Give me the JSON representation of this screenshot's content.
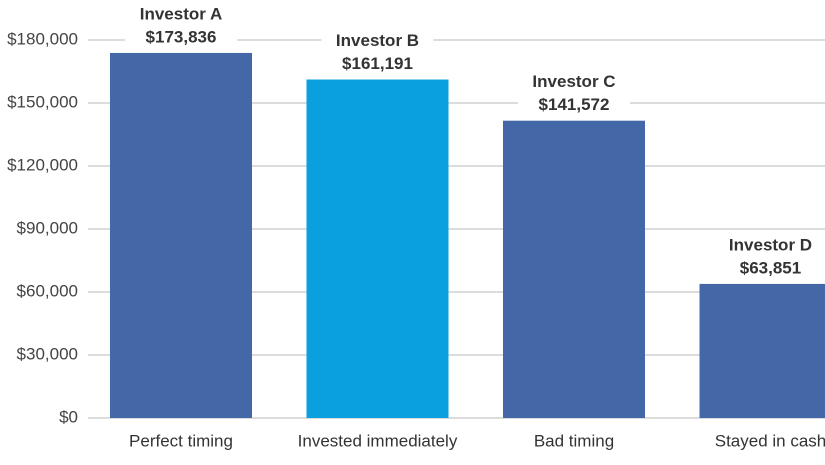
{
  "chart_data": {
    "type": "bar",
    "categories": [
      "Perfect timing",
      "Invested immediately",
      "Bad timing",
      "Stayed in cash"
    ],
    "labels": [
      "Investor A",
      "Investor B",
      "Investor C",
      "Investor D"
    ],
    "values": [
      173836,
      161191,
      141572,
      63851
    ],
    "value_labels": [
      "$173,836",
      "$161,191",
      "$141,572",
      "$63,851"
    ],
    "colors": [
      "#4467a8",
      "#0aa0e0",
      "#4467a8",
      "#4467a8"
    ],
    "ylim": [
      0,
      180000
    ],
    "yticks": [
      {
        "value": 0,
        "label": "$0"
      },
      {
        "value": 30000,
        "label": "$30,000"
      },
      {
        "value": 60000,
        "label": "$60,000"
      },
      {
        "value": 90000,
        "label": "$90,000"
      },
      {
        "value": 120000,
        "label": "$120,000"
      },
      {
        "value": 150000,
        "label": "$150,000"
      },
      {
        "value": 180000,
        "label": "$180,000"
      }
    ],
    "grid": true
  }
}
